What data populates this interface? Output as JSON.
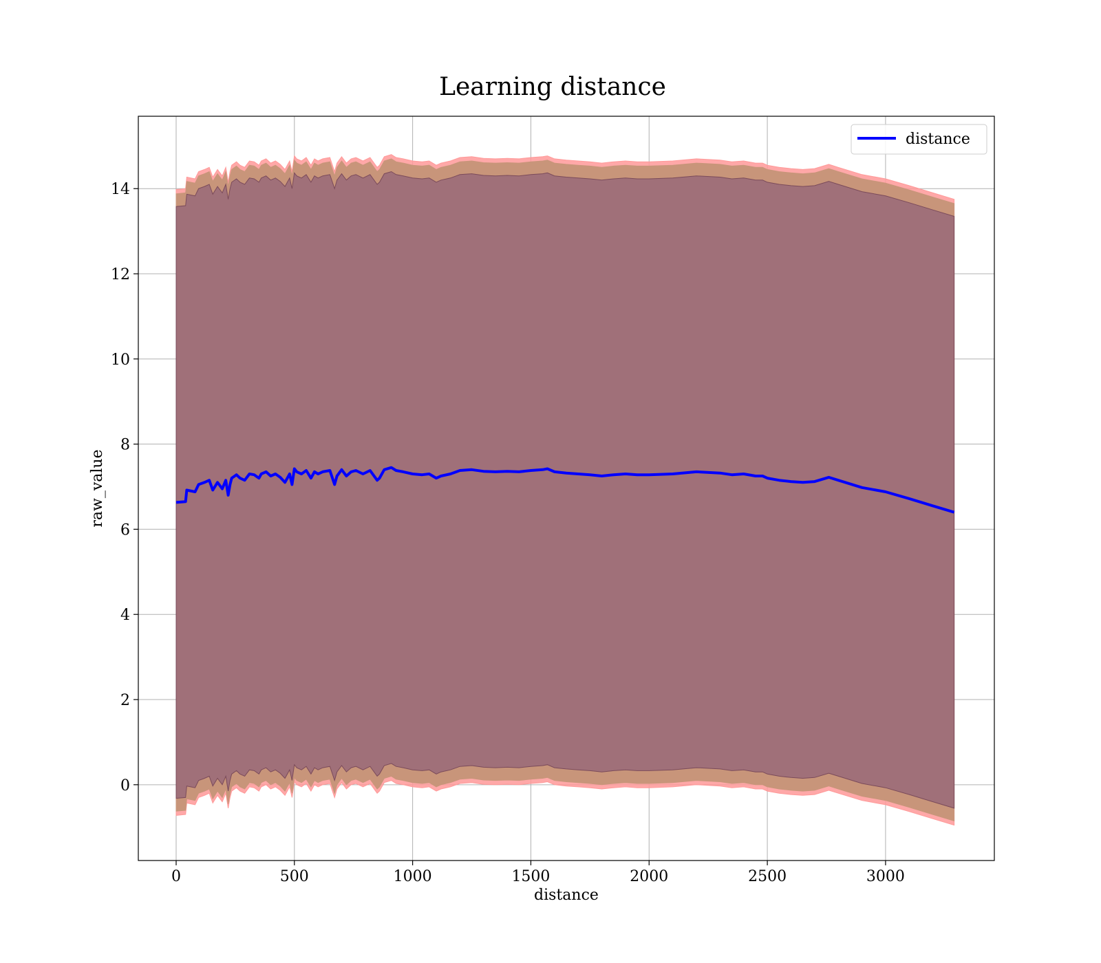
{
  "chart_data": {
    "type": "line",
    "title": "Learning distance",
    "xlabel": "distance",
    "ylabel": "raw_value",
    "xlim": [
      -160,
      3460
    ],
    "ylim": [
      -1.78,
      15.7
    ],
    "xticks": [
      0,
      500,
      1000,
      1500,
      2000,
      2500,
      3000
    ],
    "yticks": [
      0,
      2,
      4,
      6,
      8,
      10,
      12,
      14
    ],
    "grid": true,
    "legend_position": "top-right",
    "colors": {
      "line": "#0000ff",
      "outer_band": "#ff9999",
      "mid_band": "#c8957a",
      "inner_band": "#a07079",
      "inner_band_edge": "#7a4a5a"
    },
    "series": [
      {
        "name": "distance",
        "x": [
          0,
          40,
          45,
          80,
          95,
          120,
          140,
          155,
          175,
          195,
          210,
          220,
          228,
          235,
          255,
          270,
          290,
          310,
          330,
          350,
          360,
          380,
          400,
          420,
          440,
          460,
          480,
          490,
          500,
          510,
          530,
          550,
          570,
          585,
          600,
          620,
          650,
          670,
          680,
          700,
          720,
          740,
          760,
          790,
          820,
          850,
          860,
          880,
          910,
          930,
          960,
          1000,
          1040,
          1070,
          1100,
          1120,
          1160,
          1200,
          1250,
          1300,
          1350,
          1400,
          1450,
          1500,
          1550,
          1570,
          1600,
          1650,
          1700,
          1750,
          1800,
          1850,
          1900,
          1950,
          2000,
          2100,
          2200,
          2300,
          2350,
          2400,
          2450,
          2480,
          2500,
          2550,
          2600,
          2650,
          2700,
          2760,
          2800,
          2900,
          3000,
          3100,
          3200,
          3290
        ],
        "values": [
          6.63,
          6.65,
          6.92,
          6.88,
          7.05,
          7.1,
          7.15,
          6.92,
          7.1,
          6.95,
          7.15,
          6.8,
          7.05,
          7.2,
          7.28,
          7.2,
          7.15,
          7.3,
          7.28,
          7.2,
          7.3,
          7.35,
          7.25,
          7.3,
          7.22,
          7.1,
          7.3,
          7.05,
          7.42,
          7.35,
          7.3,
          7.38,
          7.2,
          7.35,
          7.3,
          7.35,
          7.38,
          7.05,
          7.25,
          7.4,
          7.25,
          7.35,
          7.38,
          7.3,
          7.38,
          7.15,
          7.2,
          7.4,
          7.45,
          7.38,
          7.35,
          7.3,
          7.28,
          7.3,
          7.2,
          7.25,
          7.3,
          7.38,
          7.4,
          7.36,
          7.35,
          7.36,
          7.35,
          7.38,
          7.4,
          7.42,
          7.35,
          7.32,
          7.3,
          7.28,
          7.25,
          7.28,
          7.3,
          7.28,
          7.28,
          7.3,
          7.35,
          7.32,
          7.28,
          7.3,
          7.25,
          7.25,
          7.2,
          7.15,
          7.12,
          7.1,
          7.12,
          7.22,
          7.15,
          6.98,
          6.88,
          6.72,
          6.55,
          6.4
        ]
      }
    ],
    "band_halfwidths": {
      "inner": 6.95,
      "mid": 7.25,
      "outer": 7.35
    }
  }
}
